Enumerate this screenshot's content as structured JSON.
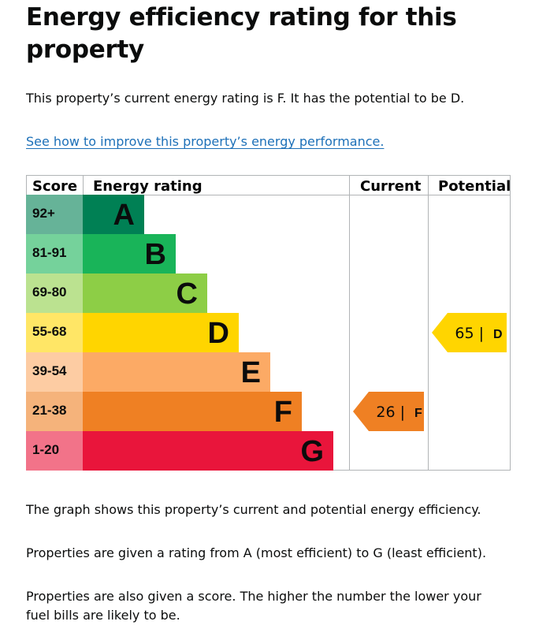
{
  "heading": "Energy efficiency rating for this property",
  "intro": "This property’s current energy rating is F. It has the potential to be D.",
  "improve_link": "See how to improve this property’s energy performance.",
  "chart_data": {
    "type": "table",
    "headers": {
      "score": "Score",
      "rating": "Energy rating",
      "current": "Current",
      "potential": "Potential"
    },
    "bands": [
      {
        "score": "92+",
        "letter": "A",
        "color": "#008054",
        "score_color": "#66b398"
      },
      {
        "score": "81-91",
        "letter": "B",
        "color": "#19b459",
        "score_color": "#75d29b"
      },
      {
        "score": "69-80",
        "letter": "C",
        "color": "#8dce46",
        "score_color": "#bbe290"
      },
      {
        "score": "55-68",
        "letter": "D",
        "color": "#ffd500",
        "score_color": "#ffe666"
      },
      {
        "score": "39-54",
        "letter": "E",
        "color": "#fcaa65",
        "score_color": "#fdcca3"
      },
      {
        "score": "21-38",
        "letter": "F",
        "color": "#ef8023",
        "score_color": "#f5b37b"
      },
      {
        "score": "1-20",
        "letter": "G",
        "color": "#e9153b",
        "score_color": "#f27389"
      }
    ],
    "current": {
      "value": 26,
      "letter": "F",
      "label": "26 |",
      "color": "#ef8023"
    },
    "potential": {
      "value": 65,
      "letter": "D",
      "label": "65 |",
      "color": "#ffd500"
    }
  },
  "explain_1": "The graph shows this property’s current and potential energy efficiency.",
  "explain_2": "Properties are given a rating from A (most efficient) to G (least efficient).",
  "explain_3": "Properties are also given a score. The higher the number the lower your fuel bills are likely to be."
}
